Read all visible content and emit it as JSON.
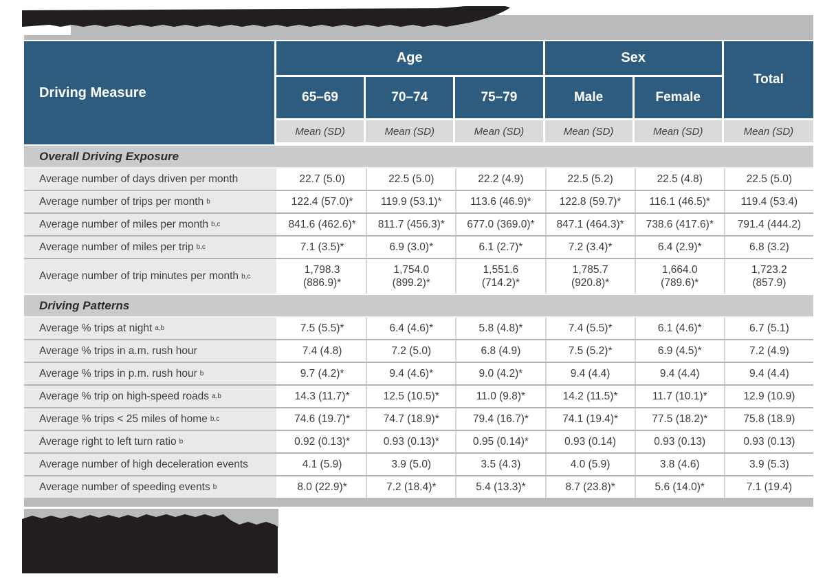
{
  "palette": {
    "header_blue": "#2e5c7e",
    "band_gray": "#b9babc",
    "section_gray": "#c9cacb",
    "subheader_gray": "#d9d9d9",
    "label_gray": "#e9e9ea",
    "redaction_black": "#221e1f"
  },
  "redacted_regions": [
    "table-title",
    "footnotes"
  ],
  "table": {
    "first_col_header": "Driving Measure",
    "total_label": "Total",
    "subheader": "Mean (SD)",
    "groups": [
      {
        "label": "Age",
        "cols": [
          "65–69",
          "70–74",
          "75–79"
        ]
      },
      {
        "label": "Sex",
        "cols": [
          "Male",
          "Female"
        ]
      }
    ],
    "sections": [
      {
        "title": "Overall Driving Exposure",
        "rows": [
          {
            "label": "Average number of days driven per month",
            "sup": "",
            "tall": false,
            "values": [
              "22.7 (5.0)",
              "22.5 (5.0)",
              "22.2 (4.9)",
              "22.5 (5.2)",
              "22.5 (4.8)",
              "22.5 (5.0)"
            ]
          },
          {
            "label": "Average number of trips per month",
            "sup": "b",
            "tall": false,
            "values": [
              "122.4 (57.0)*",
              "119.9 (53.1)*",
              "113.6 (46.9)*",
              "122.8 (59.7)*",
              "116.1 (46.5)*",
              "119.4 (53.4)"
            ]
          },
          {
            "label": "Average number of miles per month",
            "sup": "b,c",
            "tall": false,
            "values": [
              "841.6 (462.6)*",
              "811.7 (456.3)*",
              "677.0 (369.0)*",
              "847.1 (464.3)*",
              "738.6 (417.6)*",
              "791.4 (444.2)"
            ]
          },
          {
            "label": "Average number of miles per trip",
            "sup": "b,c",
            "tall": false,
            "values": [
              "7.1 (3.5)*",
              "6.9 (3.0)*",
              "6.1 (2.7)*",
              "7.2 (3.4)*",
              "6.4 (2.9)*",
              "6.8 (3.2)"
            ]
          },
          {
            "label": "Average number of trip minutes per month",
            "sup": "b,c",
            "tall": true,
            "values": [
              "1,798.3 (886.9)*",
              "1,754.0 (899.2)*",
              "1,551.6 (714.2)*",
              "1,785.7 (920.8)*",
              "1,664.0 (789.6)*",
              "1,723.2 (857.9)"
            ]
          }
        ]
      },
      {
        "title": "Driving Patterns",
        "rows": [
          {
            "label": "Average % trips at night",
            "sup": "a,b",
            "tall": false,
            "values": [
              "7.5 (5.5)*",
              "6.4 (4.6)*",
              "5.8 (4.8)*",
              "7.4 (5.5)*",
              "6.1 (4.6)*",
              "6.7 (5.1)"
            ]
          },
          {
            "label": "Average % trips in a.m. rush hour",
            "sup": "",
            "tall": false,
            "values": [
              "7.4 (4.8)",
              "7.2 (5.0)",
              "6.8 (4.9)",
              "7.5 (5.2)*",
              "6.9 (4.5)*",
              "7.2 (4.9)"
            ]
          },
          {
            "label": "Average % trips in p.m. rush hour",
            "sup": "b",
            "tall": false,
            "values": [
              "9.7 (4.2)*",
              "9.4 (4.6)*",
              "9.0 (4.2)*",
              "9.4 (4.4)",
              "9.4 (4.4)",
              "9.4 (4.4)"
            ]
          },
          {
            "label": "Average % trip on high-speed roads",
            "sup": "a,b",
            "tall": false,
            "values": [
              "14.3 (11.7)*",
              "12.5 (10.5)*",
              "11.0 (9.8)*",
              "14.2 (11.5)*",
              "11.7 (10.1)*",
              "12.9 (10.9)"
            ]
          },
          {
            "label": "Average % trips < 25 miles of home",
            "sup": "b,c",
            "tall": false,
            "values": [
              "74.6 (19.7)*",
              "74.7 (18.9)*",
              "79.4 (16.7)*",
              "74.1 (19.4)*",
              "77.5 (18.2)*",
              "75.8 (18.9)"
            ]
          },
          {
            "label": "Average right to left turn ratio",
            "sup": "b",
            "tall": false,
            "values": [
              "0.92 (0.13)*",
              "0.93 (0.13)*",
              "0.95 (0.14)*",
              "0.93 (0.14)",
              "0.93 (0.13)",
              "0.93 (0.13)"
            ]
          },
          {
            "label": "Average number of high deceleration events",
            "sup": "",
            "tall": false,
            "values": [
              "4.1 (5.9)",
              "3.9 (5.0)",
              "3.5 (4.3)",
              "4.0 (5.9)",
              "3.8 (4.6)",
              "3.9 (5.3)"
            ]
          },
          {
            "label": "Average number of speeding events",
            "sup": "b",
            "tall": false,
            "values": [
              "8.0 (22.9)*",
              "7.2 (18.4)*",
              "5.4 (13.3)*",
              "8.7 (23.8)*",
              "5.6 (14.0)*",
              "7.1 (19.4)"
            ]
          }
        ]
      }
    ]
  }
}
